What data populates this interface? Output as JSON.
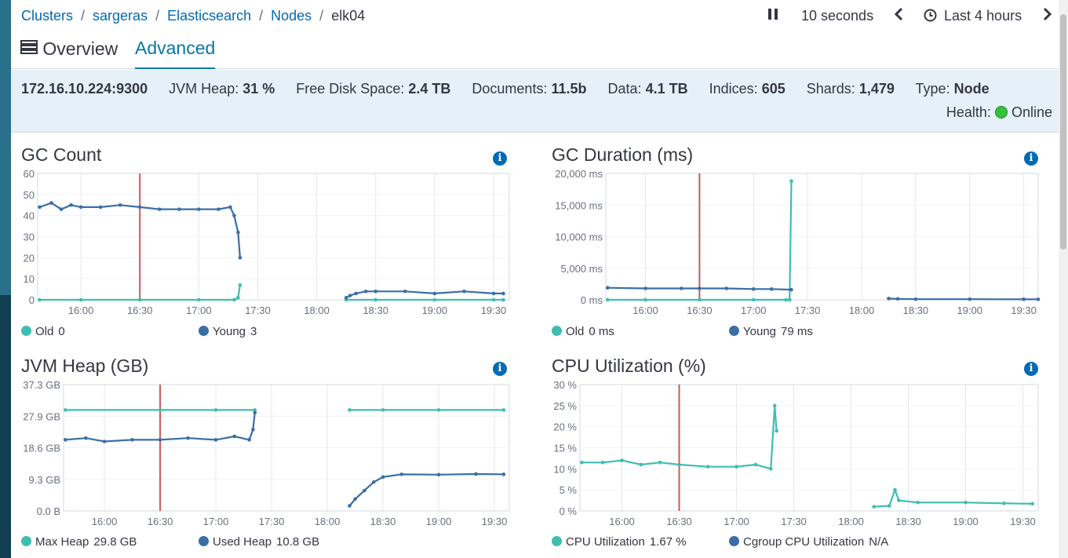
{
  "breadcrumb": {
    "items": [
      "Clusters",
      "sargeras",
      "Elasticsearch",
      "Nodes"
    ],
    "current": "elk04",
    "separator": "/"
  },
  "time_controls": {
    "pause_icon": "pause-icon",
    "refresh_interval": "10 seconds",
    "prev_icon": "chevron-left-icon",
    "clock_icon": "clock-icon",
    "time_range": "Last 4 hours",
    "next_icon": "chevron-right-icon"
  },
  "tabs": {
    "overview": "Overview",
    "advanced": "Advanced",
    "overview_icon": "server-icon"
  },
  "summary": {
    "address": "172.16.10.224:9300",
    "jvm_heap_label": "JVM Heap:",
    "jvm_heap_value": "31 %",
    "free_disk_label": "Free Disk Space:",
    "free_disk_value": "2.4 TB",
    "documents_label": "Documents:",
    "documents_value": "11.5b",
    "data_label": "Data:",
    "data_value": "4.1 TB",
    "indices_label": "Indices:",
    "indices_value": "605",
    "shards_label": "Shards:",
    "shards_value": "1,479",
    "type_label": "Type:",
    "type_value": "Node",
    "health_label": "Health:",
    "health_value": "Online"
  },
  "colors": {
    "teal": "#3ebeb0",
    "blue": "#3b6ea5",
    "marker": "#c85a5a",
    "health": "#31c43a",
    "link": "#006bb4"
  },
  "chart_data": [
    {
      "type": "line",
      "title": "GC Count",
      "ylim": [
        0,
        60
      ],
      "y_ticks": [
        "0",
        "10",
        "20",
        "30",
        "40",
        "50",
        "60"
      ],
      "x_ticks": [
        "16:00",
        "16:30",
        "17:00",
        "17:30",
        "18:00",
        "18:30",
        "19:00",
        "19:30"
      ],
      "marker_time": "16:30",
      "series": [
        {
          "name": "Old",
          "legend_value": "0",
          "color": "#3ebeb0",
          "segments": [
            [
              [
                "15:39",
                0
              ],
              [
                "16:00",
                0
              ],
              [
                "16:30",
                0
              ],
              [
                "17:00",
                0
              ],
              [
                "17:18",
                0
              ],
              [
                "17:20",
                1
              ],
              [
                "17:21",
                7
              ]
            ],
            [
              [
                "18:15",
                0
              ],
              [
                "18:30",
                0
              ],
              [
                "19:00",
                0
              ],
              [
                "19:30",
                0
              ],
              [
                "19:35",
                0
              ]
            ]
          ]
        },
        {
          "name": "Young",
          "legend_value": "3",
          "color": "#3b6ea5",
          "segments": [
            [
              [
                "15:39",
                44
              ],
              [
                "15:45",
                46
              ],
              [
                "15:50",
                43
              ],
              [
                "15:55",
                45
              ],
              [
                "16:00",
                44
              ],
              [
                "16:10",
                44
              ],
              [
                "16:20",
                45
              ],
              [
                "16:30",
                44
              ],
              [
                "16:40",
                43
              ],
              [
                "16:50",
                43
              ],
              [
                "17:00",
                43
              ],
              [
                "17:10",
                43
              ],
              [
                "17:16",
                44
              ],
              [
                "17:18",
                40
              ],
              [
                "17:20",
                32
              ],
              [
                "17:21",
                20
              ]
            ],
            [
              [
                "18:15",
                1
              ],
              [
                "18:17",
                2
              ],
              [
                "18:20",
                3
              ],
              [
                "18:25",
                4
              ],
              [
                "18:30",
                4
              ],
              [
                "18:45",
                4
              ],
              [
                "19:00",
                3
              ],
              [
                "19:15",
                4
              ],
              [
                "19:30",
                3
              ],
              [
                "19:35",
                3
              ]
            ]
          ]
        }
      ]
    },
    {
      "type": "line",
      "title": "GC Duration (ms)",
      "ylim": [
        0,
        20000
      ],
      "y_ticks": [
        "0 ms",
        "5,000 ms",
        "10,000 ms",
        "15,000 ms",
        "20,000 ms"
      ],
      "x_ticks": [
        "16:00",
        "16:30",
        "17:00",
        "17:30",
        "18:00",
        "18:30",
        "19:00",
        "19:30"
      ],
      "marker_time": "16:30",
      "series": [
        {
          "name": "Old",
          "legend_value": "0 ms",
          "color": "#3ebeb0",
          "segments": [
            [
              [
                "15:39",
                0
              ],
              [
                "16:00",
                0
              ],
              [
                "16:30",
                0
              ],
              [
                "17:00",
                0
              ],
              [
                "17:18",
                0
              ],
              [
                "17:20",
                0
              ],
              [
                "17:21",
                18800
              ]
            ]
          ]
        },
        {
          "name": "Young",
          "legend_value": "79 ms",
          "color": "#3b6ea5",
          "segments": [
            [
              [
                "15:39",
                1900
              ],
              [
                "16:00",
                1800
              ],
              [
                "16:20",
                1800
              ],
              [
                "16:30",
                1800
              ],
              [
                "16:45",
                1800
              ],
              [
                "17:00",
                1700
              ],
              [
                "17:10",
                1700
              ],
              [
                "17:21",
                1600
              ]
            ],
            [
              [
                "18:15",
                200
              ],
              [
                "18:20",
                150
              ],
              [
                "18:30",
                100
              ],
              [
                "19:00",
                100
              ],
              [
                "19:30",
                80
              ],
              [
                "19:38",
                79
              ]
            ]
          ]
        }
      ]
    },
    {
      "type": "line",
      "title": "JVM Heap (GB)",
      "ylim": [
        0,
        37.3
      ],
      "y_ticks": [
        "0.0 B",
        "9.3 GB",
        "18.6 GB",
        "27.9 GB",
        "37.3 GB"
      ],
      "x_ticks": [
        "16:00",
        "16:30",
        "17:00",
        "17:30",
        "18:00",
        "18:30",
        "19:00",
        "19:30"
      ],
      "marker_time": "16:30",
      "series": [
        {
          "name": "Max Heap",
          "legend_value": "29.8 GB",
          "color": "#3ebeb0",
          "segments": [
            [
              [
                "15:39",
                29.8
              ],
              [
                "16:30",
                29.8
              ],
              [
                "17:00",
                29.8
              ],
              [
                "17:21",
                29.8
              ]
            ],
            [
              [
                "18:12",
                29.8
              ],
              [
                "18:30",
                29.8
              ],
              [
                "19:00",
                29.8
              ],
              [
                "19:35",
                29.8
              ]
            ]
          ]
        },
        {
          "name": "Used Heap",
          "legend_value": "10.8 GB",
          "color": "#3b6ea5",
          "segments": [
            [
              [
                "15:39",
                21
              ],
              [
                "15:50",
                21.5
              ],
              [
                "16:00",
                20.5
              ],
              [
                "16:15",
                21
              ],
              [
                "16:30",
                21
              ],
              [
                "16:45",
                21.5
              ],
              [
                "17:00",
                21
              ],
              [
                "17:10",
                22
              ],
              [
                "17:18",
                21
              ],
              [
                "17:20",
                24
              ],
              [
                "17:21",
                29
              ]
            ],
            [
              [
                "18:12",
                1.5
              ],
              [
                "18:15",
                3.5
              ],
              [
                "18:20",
                6
              ],
              [
                "18:25",
                8.5
              ],
              [
                "18:30",
                10
              ],
              [
                "18:40",
                10.8
              ],
              [
                "19:00",
                10.7
              ],
              [
                "19:20",
                10.9
              ],
              [
                "19:35",
                10.8
              ]
            ]
          ]
        }
      ]
    },
    {
      "type": "line",
      "title": "CPU Utilization (%)",
      "ylim": [
        0,
        30
      ],
      "y_ticks": [
        "0 %",
        "5 %",
        "10 %",
        "15 %",
        "20 %",
        "25 %",
        "30 %"
      ],
      "x_ticks": [
        "16:00",
        "16:30",
        "17:00",
        "17:30",
        "18:00",
        "18:30",
        "19:00",
        "19:30"
      ],
      "marker_time": "16:30",
      "series": [
        {
          "name": "CPU Utilization",
          "legend_value": "1.67 %",
          "color": "#3ebeb0",
          "segments": [
            [
              [
                "15:39",
                11.5
              ],
              [
                "15:50",
                11.5
              ],
              [
                "16:00",
                12
              ],
              [
                "16:10",
                11
              ],
              [
                "16:20",
                11.5
              ],
              [
                "16:30",
                11
              ],
              [
                "16:45",
                10.5
              ],
              [
                "17:00",
                10.5
              ],
              [
                "17:10",
                11
              ],
              [
                "17:18",
                10
              ],
              [
                "17:20",
                25
              ],
              [
                "17:21",
                19
              ]
            ],
            [
              [
                "18:12",
                1
              ],
              [
                "18:20",
                1.2
              ],
              [
                "18:23",
                5
              ],
              [
                "18:25",
                2.5
              ],
              [
                "18:35",
                2
              ],
              [
                "19:00",
                2
              ],
              [
                "19:20",
                1.8
              ],
              [
                "19:35",
                1.7
              ]
            ]
          ]
        },
        {
          "name": "Cgroup CPU Utilization",
          "legend_value": "N/A",
          "color": "#3b6ea5",
          "segments": []
        }
      ]
    }
  ]
}
